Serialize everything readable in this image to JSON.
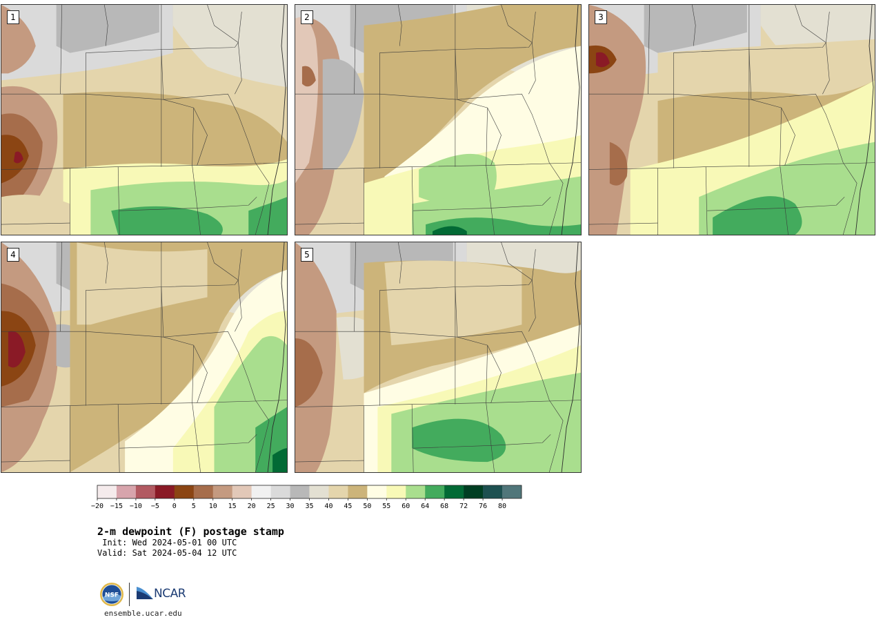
{
  "product": {
    "title": "2-m dewpoint (F) postage stamp",
    "init": " Init: Wed 2024-05-01 00 UTC",
    "valid": "Valid: Sat 2024-05-04 12 UTC"
  },
  "stamps": [
    {
      "label": "1"
    },
    {
      "label": "2"
    },
    {
      "label": "3"
    },
    {
      "label": "4"
    },
    {
      "label": "5"
    }
  ],
  "colorbar": {
    "unit": "F",
    "ticks": [
      "−20",
      "−15",
      "−10",
      "−5",
      "0",
      "5",
      "10",
      "15",
      "20",
      "25",
      "30",
      "35",
      "40",
      "45",
      "50",
      "55",
      "60",
      "64",
      "68",
      "72",
      "76",
      "80"
    ],
    "colors": [
      "#f5ebec",
      "#d7a4ac",
      "#b25a62",
      "#8a1a26",
      "#8b4513",
      "#a66d4b",
      "#c49a80",
      "#e2c8b8",
      "#f1f1f1",
      "#dadada",
      "#b8b8b8",
      "#e3e0d2",
      "#e4d5ac",
      "#ccb47a",
      "#fffde4",
      "#f8f9b7",
      "#a9de8e",
      "#43ab5d",
      "#026a35",
      "#003e22",
      "#1d5050",
      "#50767a"
    ]
  },
  "branding": {
    "nsf_mark": "NSF",
    "ncar_mark": "NCAR",
    "site": "ensemble.ucar.edu"
  }
}
